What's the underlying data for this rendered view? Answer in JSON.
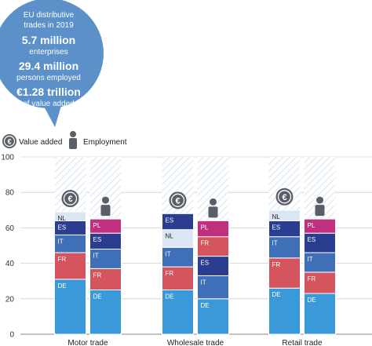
{
  "infobox": {
    "title_line1": "EU distributive",
    "title_line2": "trades in 2019",
    "enterprises_value": "5.7 million",
    "enterprises_label": "enterprises",
    "persons_value": "29.4 million",
    "persons_label": "persons employed",
    "value_added_value": "€1.28 trillion",
    "value_added_label": "of value added"
  },
  "legend": {
    "value_added": "Value added",
    "employment": "Employment",
    "euro_symbol": "€"
  },
  "colors": {
    "DE": "#3a9ad9",
    "FR": "#d4555e",
    "IT": "#3f6fb6",
    "ES": "#2a3d8f",
    "NL": "#dbe6f5",
    "PL": "#c0307f",
    "bubble": "#5b90c9",
    "icon": "#5a5e69"
  },
  "chart_data": {
    "type": "bar",
    "stacked": true,
    "ylim": [
      0,
      100
    ],
    "yticks": [
      0,
      20,
      40,
      60,
      80,
      100
    ],
    "xlabel": "",
    "ylabel": "",
    "categories": [
      "Motor trade",
      "Wholesale trade",
      "Retail trade"
    ],
    "groups": [
      {
        "category": "Motor trade",
        "bars": [
          {
            "measure": "Value added",
            "segments": [
              {
                "label": "DE",
                "value": 31
              },
              {
                "label": "FR",
                "value": 15
              },
              {
                "label": "IT",
                "value": 10
              },
              {
                "label": "ES",
                "value": 8
              },
              {
                "label": "NL",
                "value": 5
              }
            ]
          },
          {
            "measure": "Employment",
            "segments": [
              {
                "label": "DE",
                "value": 25
              },
              {
                "label": "FR",
                "value": 12
              },
              {
                "label": "IT",
                "value": 11
              },
              {
                "label": "ES",
                "value": 9
              },
              {
                "label": "PL",
                "value": 8
              }
            ]
          }
        ]
      },
      {
        "category": "Wholesale trade",
        "bars": [
          {
            "measure": "Value added",
            "segments": [
              {
                "label": "DE",
                "value": 25
              },
              {
                "label": "FR",
                "value": 13
              },
              {
                "label": "IT",
                "value": 11
              },
              {
                "label": "NL",
                "value": 10
              },
              {
                "label": "ES",
                "value": 9
              }
            ]
          },
          {
            "measure": "Employment",
            "segments": [
              {
                "label": "DE",
                "value": 20
              },
              {
                "label": "IT",
                "value": 13
              },
              {
                "label": "ES",
                "value": 11
              },
              {
                "label": "FR",
                "value": 11
              },
              {
                "label": "PL",
                "value": 9
              }
            ]
          }
        ]
      },
      {
        "category": "Retail trade",
        "bars": [
          {
            "measure": "Value added",
            "segments": [
              {
                "label": "DE",
                "value": 26
              },
              {
                "label": "FR",
                "value": 17
              },
              {
                "label": "IT",
                "value": 12
              },
              {
                "label": "ES",
                "value": 9
              },
              {
                "label": "NL",
                "value": 6
              }
            ]
          },
          {
            "measure": "Employment",
            "segments": [
              {
                "label": "DE",
                "value": 23
              },
              {
                "label": "FR",
                "value": 12
              },
              {
                "label": "IT",
                "value": 11
              },
              {
                "label": "ES",
                "value": 11
              },
              {
                "label": "PL",
                "value": 8
              }
            ]
          }
        ]
      }
    ]
  }
}
